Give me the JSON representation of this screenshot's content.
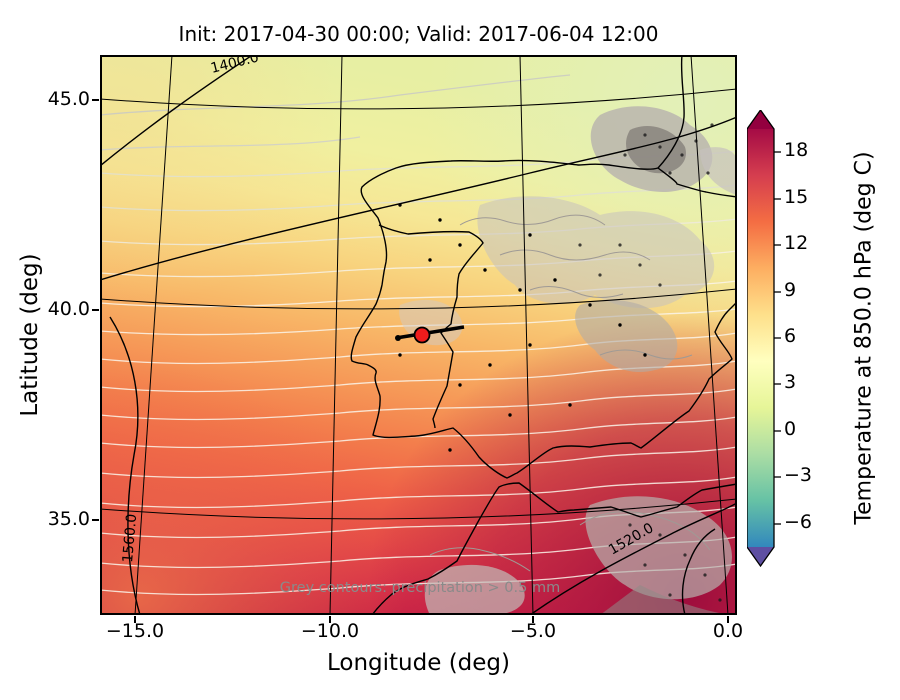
{
  "figure": {
    "title": "Init: 2017-04-30 00:00; Valid: 2017-06-04 12:00"
  },
  "axes": {
    "xlabel": "Longitude (deg)",
    "ylabel": "Latitude (deg)",
    "xtick_labels": [
      "−15.0",
      "−10.0",
      "−5.0",
      "0.0"
    ],
    "ytick_labels": [
      "45.0",
      "40.0",
      "35.0"
    ]
  },
  "map": {
    "contour_labels": [
      "1400.0",
      "1560.0",
      "1520.0"
    ],
    "precip_note": "Grey contours: precipitation > 0.5 mm",
    "marker": {
      "lon": -7.7,
      "lat": 39.4,
      "color": "#ee1c1c"
    }
  },
  "colorbar": {
    "label": "Temperature at 850.0 hPa (deg C)",
    "tick_labels": [
      "18",
      "15",
      "12",
      "9",
      "6",
      "3",
      "0",
      "−3",
      "−6"
    ]
  },
  "chart_data": {
    "type": "heatmap",
    "title": "Init: 2017-04-30 00:00; Valid: 2017-06-04 12:00",
    "xlabel": "Longitude (deg)",
    "ylabel": "Latitude (deg)",
    "xlim": [
      -15.9,
      0.3
    ],
    "ylim": [
      32.7,
      46.1
    ],
    "xticks": [
      -15.0,
      -10.0,
      -5.0,
      0.0
    ],
    "yticks": [
      35.0,
      40.0,
      45.0
    ],
    "grid": true,
    "field": "Temperature at 850.0 hPa (deg C), filled contours",
    "field_summary": {
      "north_iberia_c": [
        3,
        6
      ],
      "central_iberia_c": [
        9,
        12
      ],
      "south_iberia_c": [
        15,
        18
      ],
      "southeast_corner_c": "> 18",
      "gradient_direction": "temperature increases from NW to SE"
    },
    "colorbar": {
      "label": "Temperature at 850.0 hPa (deg C)",
      "ticks": [
        18,
        15,
        12,
        9,
        6,
        3,
        0,
        -3,
        -6
      ],
      "range_shown": [
        -7.5,
        19.5
      ],
      "extend": "both",
      "colors": [
        "#a50b45",
        "#d53e4f",
        "#f46d43",
        "#fdae61",
        "#fee08b",
        "#ffffbf",
        "#e6f598",
        "#abdda4",
        "#66c2a5",
        "#3288bd"
      ],
      "over_color": "#93003f",
      "under_color": "#5e4fa2"
    },
    "geopotential_contours": {
      "color": "black",
      "labeled_values": [
        1400.0,
        1560.0,
        1520.0
      ]
    },
    "precipitation_note": "Grey contours: precipitation > 0.5 mm",
    "marker": {
      "lon": -7.7,
      "lat": 39.4
    }
  }
}
